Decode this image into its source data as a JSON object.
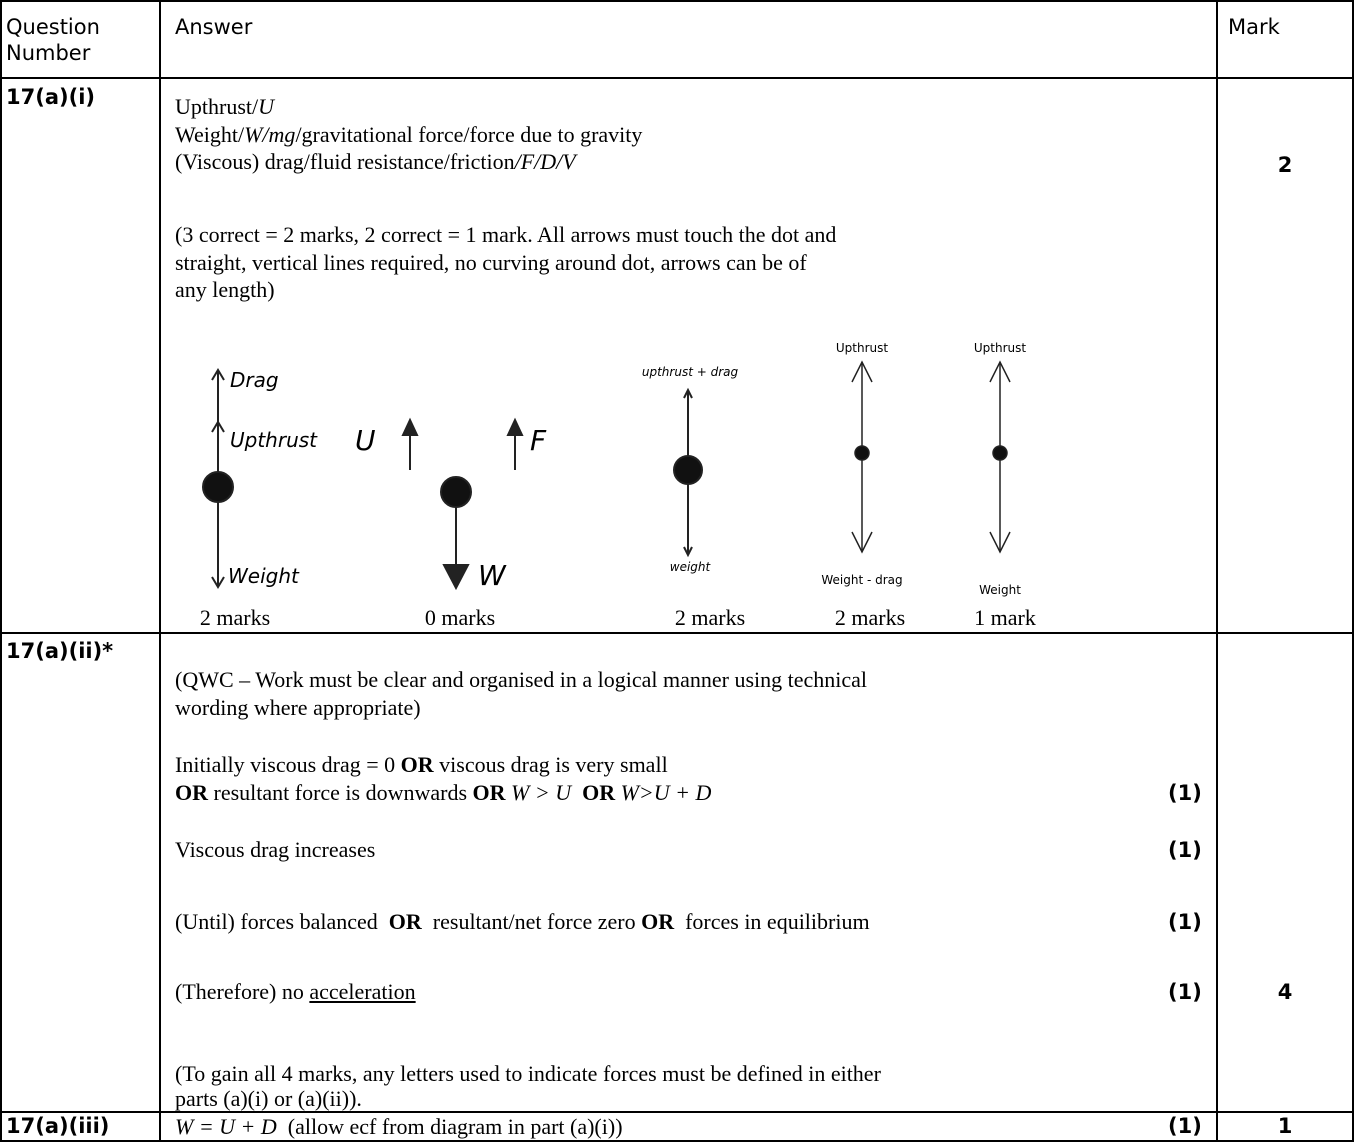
{
  "table": {
    "header": {
      "question": "Question Number",
      "answer": "Answer",
      "mark": "Mark"
    },
    "rows": [
      {
        "question": "17(a)(i)",
        "answer": {
          "forces": [
            [
              "Upthrust/",
              "U"
            ],
            [
              "Weight/",
              "W/mg",
              "/gravitational force/force due to gravity"
            ],
            [
              "(Viscous) drag/fluid resistance/friction",
              "/F/D/V"
            ]
          ],
          "note": [
            "(3 correct = 2 marks, 2 correct = 1 mark. All arrows must touch the dot and",
            "straight, vertical lines required, no curving around dot, arrows can be of",
            "any length)"
          ],
          "examples": [
            {
              "labels": [
                "Drag",
                "Upthrust",
                "Weight"
              ],
              "caption": "2 marks"
            },
            {
              "labels": [
                "U",
                "F",
                "W"
              ],
              "caption": "0 marks"
            },
            {
              "labels": [
                "upthrust + drag",
                "weight"
              ],
              "caption": "2 marks"
            },
            {
              "labels": [
                "Upthrust",
                "Weight - drag"
              ],
              "caption": "2 marks"
            },
            {
              "labels": [
                "Upthrust",
                "Weight"
              ],
              "caption": "1 mark"
            }
          ]
        },
        "mark": "2"
      },
      {
        "question": "17(a)(ii)*",
        "answer": {
          "qwc": [
            "(QWC – Work must be clear and organised in a logical manner using technical",
            "wording where appropriate)"
          ],
          "points": [
            {
              "lines": [
                [
                  "Initially viscous drag = 0 ",
                  "OR",
                  " viscous drag is very small"
                ],
                [
                  "OR",
                  " resultant force is downwards ",
                  "OR",
                  " W > U  ",
                  "OR",
                  " W>U + D"
                ]
              ],
              "mark": "(1)"
            },
            {
              "lines": [
                [
                  "Viscous drag increases"
                ]
              ],
              "mark": "(1)"
            },
            {
              "lines": [
                [
                  "(Until) forces balanced  ",
                  "OR",
                  "  resultant/net force zero ",
                  "OR",
                  "  forces in equilibrium"
                ]
              ],
              "mark": "(1)"
            },
            {
              "lines": [
                [
                  "(Therefore) no ",
                  "acceleration"
                ]
              ],
              "mark": "(1)"
            }
          ],
          "note": [
            "(To gain all 4 marks, any letters used to indicate forces must be defined in either",
            "parts (a)(i) or (a)(ii))."
          ]
        },
        "mark": "4"
      },
      {
        "question": "17(a)(iii)",
        "answer": {
          "text": [
            "W = U + D",
            "  (allow ecf from diagram in part (a)(i))"
          ],
          "point_mark": "(1)"
        },
        "mark": "1"
      }
    ]
  }
}
